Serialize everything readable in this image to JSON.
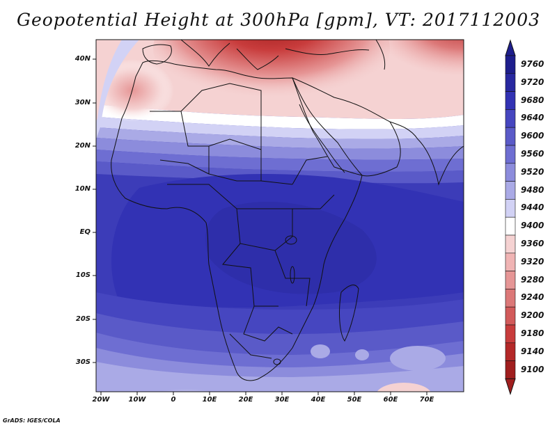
{
  "title": "Geopotential Height at 300hPa [gpm], VT: 2017112003",
  "footer": "GrADS: IGES/COLA",
  "map": {
    "lat_labels": [
      "40N",
      "30N",
      "20N",
      "10N",
      "EQ",
      "10S",
      "20S",
      "30S"
    ],
    "lon_labels": [
      "20W",
      "10W",
      "0",
      "10E",
      "20E",
      "30E",
      "40E",
      "50E",
      "60E",
      "70E"
    ]
  },
  "colorbar": {
    "levels": [
      "9760",
      "9720",
      "9680",
      "9640",
      "9600",
      "9560",
      "9520",
      "9480",
      "9440",
      "9400",
      "9360",
      "9320",
      "9280",
      "9240",
      "9200",
      "9180",
      "9140",
      "9100"
    ],
    "colors": [
      "#1e1e8c",
      "#2828a0",
      "#3232b4",
      "#4646c0",
      "#5a5ac8",
      "#6e6ed2",
      "#8c8cdc",
      "#aaaae6",
      "#d2d2f5",
      "#ffffff",
      "#f5d2d2",
      "#f0b4b4",
      "#e69696",
      "#dc7878",
      "#d25a5a",
      "#c83c3c",
      "#b42828",
      "#a01e1e"
    ]
  }
}
